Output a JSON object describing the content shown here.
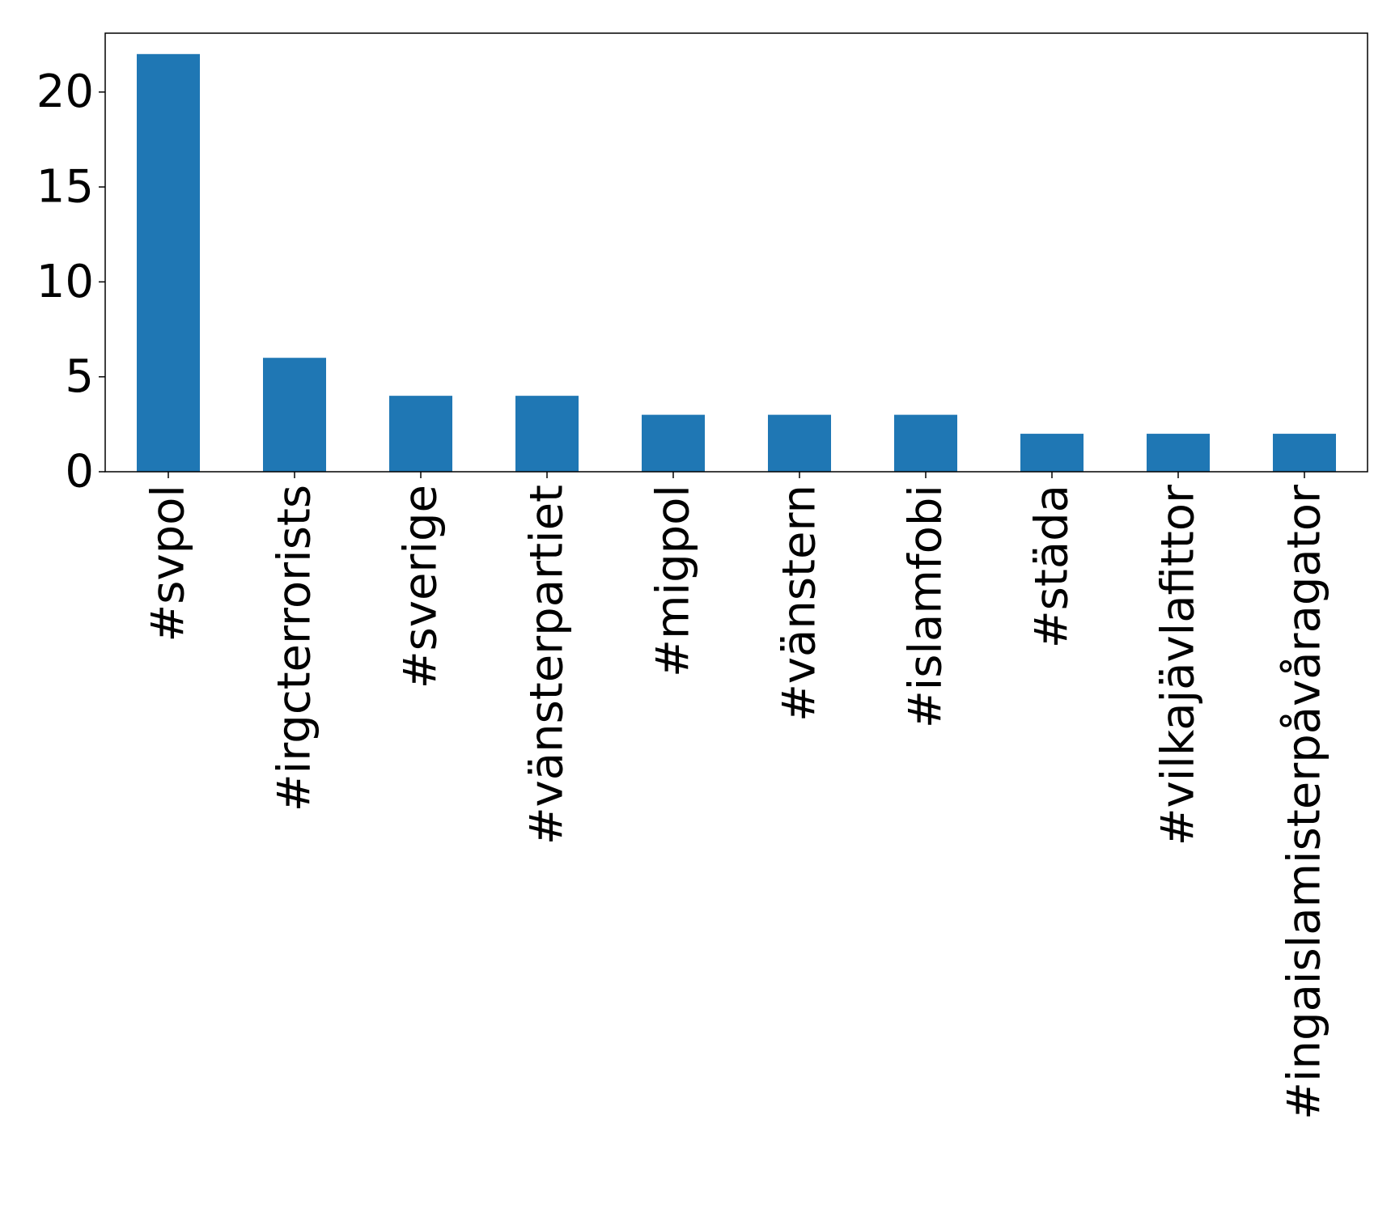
{
  "chart_data": {
    "type": "bar",
    "title": "",
    "xlabel": "",
    "ylabel": "",
    "categories": [
      "#svpol",
      "#irgcterrorists",
      "#sverige",
      "#vänsterpartiet",
      "#migpol",
      "#vänstern",
      "#islamfobi",
      "#städa",
      "#vilkajävlafittor",
      "#ingaislamisterpåvåragator"
    ],
    "values": [
      22,
      6,
      4,
      4,
      3,
      3,
      3,
      2,
      2,
      2
    ],
    "ylim": [
      0,
      23.1
    ],
    "yticks": [
      0,
      5,
      10,
      15,
      20
    ],
    "grid": false,
    "legend": "none",
    "bar_color": "#1f77b4"
  }
}
